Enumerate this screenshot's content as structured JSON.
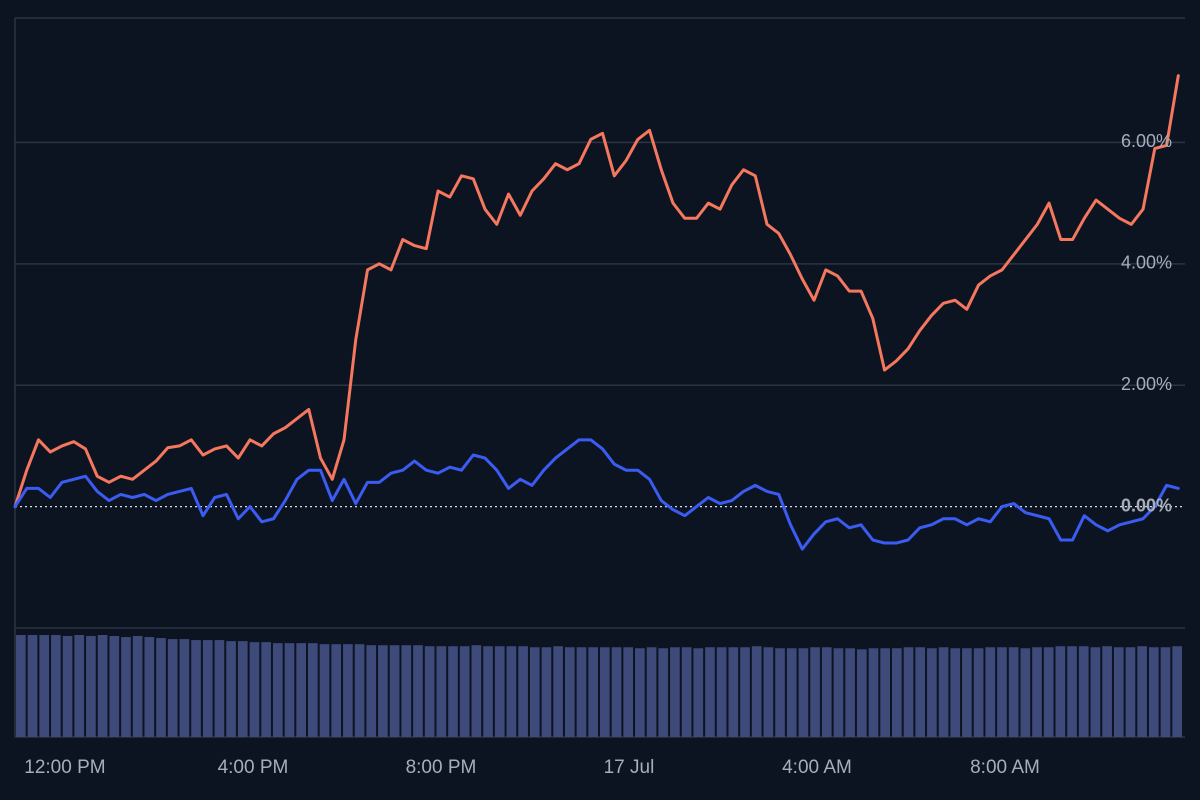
{
  "chart_data": [
    {
      "type": "line",
      "xlim": [
        0,
        99.4
      ],
      "xticks": [
        {
          "value": 4.25,
          "label": "12:00 PM"
        },
        {
          "value": 20.25,
          "label": "4:00 PM"
        },
        {
          "value": 36.25,
          "label": "8:00 PM"
        },
        {
          "value": 52.25,
          "label": "17 Jul"
        },
        {
          "value": 68.25,
          "label": "4:00 AM"
        },
        {
          "value": 84.25,
          "label": "8:00 AM"
        }
      ],
      "ylim": [
        -2,
        8.05
      ],
      "yticks": [
        {
          "value": 0,
          "label": "0.00%"
        },
        {
          "value": 2,
          "label": "2.00%"
        },
        {
          "value": 4,
          "label": "4.00%"
        },
        {
          "value": 6,
          "label": "6.00%"
        }
      ],
      "grid": true,
      "series": [
        {
          "color": "#f4775e",
          "values": [
            0,
            0.6,
            1.1,
            0.9,
            1.0,
            1.07,
            0.95,
            0.5,
            0.4,
            0.5,
            0.45,
            0.6,
            0.75,
            0.97,
            1.0,
            1.1,
            0.85,
            0.95,
            1.0,
            0.8,
            1.1,
            1.0,
            1.2,
            1.3,
            1.45,
            1.6,
            0.8,
            0.45,
            1.1,
            2.75,
            3.9,
            4.0,
            3.9,
            4.4,
            4.3,
            4.25,
            5.2,
            5.1,
            5.45,
            5.4,
            4.9,
            4.65,
            5.15,
            4.8,
            5.2,
            5.4,
            5.65,
            5.55,
            5.65,
            6.05,
            6.15,
            5.45,
            5.7,
            6.05,
            6.2,
            5.55,
            5.0,
            4.75,
            4.75,
            5.0,
            4.9,
            5.3,
            5.55,
            5.45,
            4.65,
            4.5,
            4.15,
            3.75,
            3.4,
            3.9,
            3.8,
            3.55,
            3.55,
            3.1,
            2.25,
            2.4,
            2.6,
            2.9,
            3.15,
            3.35,
            3.4,
            3.25,
            3.65,
            3.8,
            3.9,
            4.15,
            4.4,
            4.65,
            5.0,
            4.4,
            4.4,
            4.75,
            5.05,
            4.9,
            4.75,
            4.65,
            4.9,
            5.9,
            5.95,
            7.1
          ]
        },
        {
          "color": "#3b5cf2",
          "values": [
            0,
            0.3,
            0.3,
            0.15,
            0.4,
            0.45,
            0.5,
            0.25,
            0.1,
            0.2,
            0.15,
            0.2,
            0.1,
            0.2,
            0.25,
            0.3,
            -0.15,
            0.15,
            0.2,
            -0.2,
            0,
            -0.25,
            -0.2,
            0.1,
            0.45,
            0.6,
            0.6,
            0.1,
            0.45,
            0.05,
            0.4,
            0.4,
            0.55,
            0.6,
            0.75,
            0.6,
            0.55,
            0.65,
            0.6,
            0.85,
            0.8,
            0.6,
            0.3,
            0.45,
            0.35,
            0.6,
            0.8,
            0.95,
            1.1,
            1.1,
            0.95,
            0.7,
            0.6,
            0.6,
            0.45,
            0.1,
            -0.05,
            -0.15,
            0,
            0.15,
            0.05,
            0.1,
            0.25,
            0.35,
            0.25,
            0.2,
            -0.3,
            -0.7,
            -0.45,
            -0.25,
            -0.2,
            -0.35,
            -0.3,
            -0.55,
            -0.6,
            -0.6,
            -0.55,
            -0.35,
            -0.3,
            -0.2,
            -0.2,
            -0.3,
            -0.2,
            -0.25,
            0,
            0.05,
            -0.1,
            -0.15,
            -0.2,
            -0.55,
            -0.55,
            -0.15,
            -0.3,
            -0.4,
            -0.3,
            -0.25,
            -0.2,
            0,
            0.35,
            0.3
          ]
        }
      ]
    },
    {
      "type": "bar",
      "color": "#3d4a7a",
      "ylim": [
        0,
        100
      ],
      "values": [
        100,
        100,
        100,
        100,
        99,
        100,
        99,
        100,
        99,
        98,
        99,
        98,
        97,
        96,
        96,
        95,
        95,
        95,
        94,
        94,
        93,
        93,
        92,
        92,
        92,
        92,
        91,
        91,
        91,
        91,
        90,
        90,
        90,
        90,
        90,
        89,
        89,
        89,
        89,
        90,
        89,
        89,
        89,
        89,
        88,
        88,
        89,
        88,
        88,
        88,
        88,
        88,
        88,
        87,
        88,
        87,
        88,
        88,
        87,
        88,
        88,
        88,
        88,
        89,
        88,
        87,
        87,
        87,
        88,
        88,
        87,
        87,
        86,
        87,
        87,
        87,
        88,
        88,
        87,
        88,
        87,
        87,
        87,
        88,
        88,
        88,
        87,
        88,
        88,
        89,
        89,
        89,
        88,
        89,
        88,
        88,
        89,
        88,
        88,
        89
      ]
    }
  ]
}
